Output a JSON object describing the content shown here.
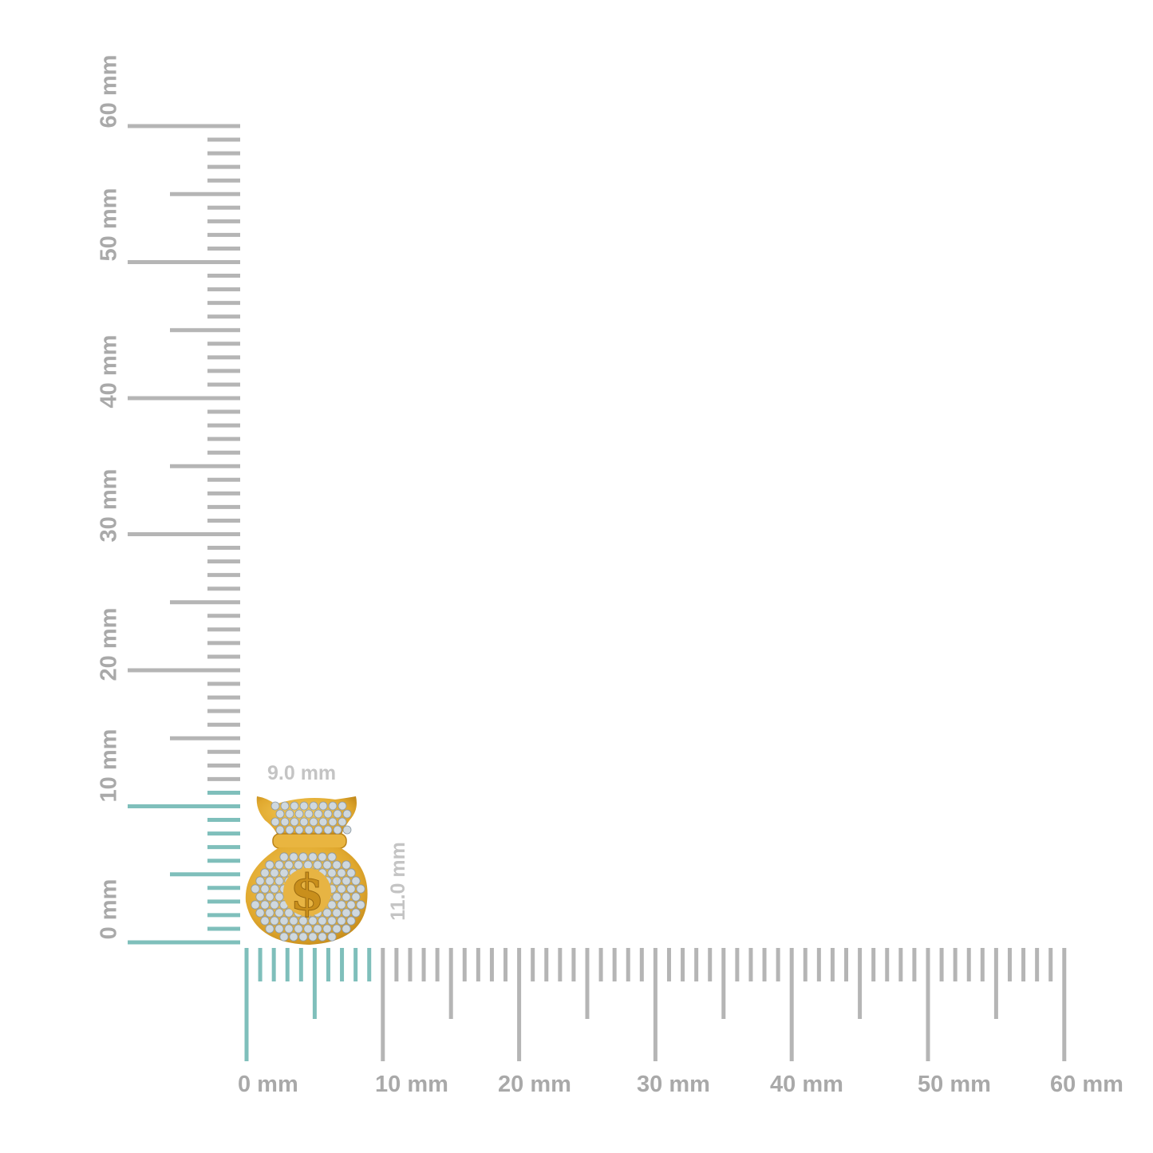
{
  "rulers": {
    "unit": "mm",
    "range_mm": [
      0,
      60
    ],
    "minor_step_mm": 1,
    "tick_color": "#b5b5b5",
    "highlight_color": "#7fbfbb",
    "horizontal_labels": [
      "0 mm",
      "10 mm",
      "20 mm",
      "30 mm",
      "40 mm",
      "50 mm",
      "60 mm"
    ],
    "vertical_labels": [
      "0 mm",
      "10 mm",
      "20 mm",
      "30 mm",
      "40 mm",
      "50 mm",
      "60 mm"
    ],
    "highlight_width_mm": 9,
    "highlight_height_mm": 11
  },
  "product": {
    "width_label": "9.0 mm",
    "height_label": "11.0 mm",
    "metal_color": "#e0a82e",
    "stone_color": "#cdd6dc"
  }
}
